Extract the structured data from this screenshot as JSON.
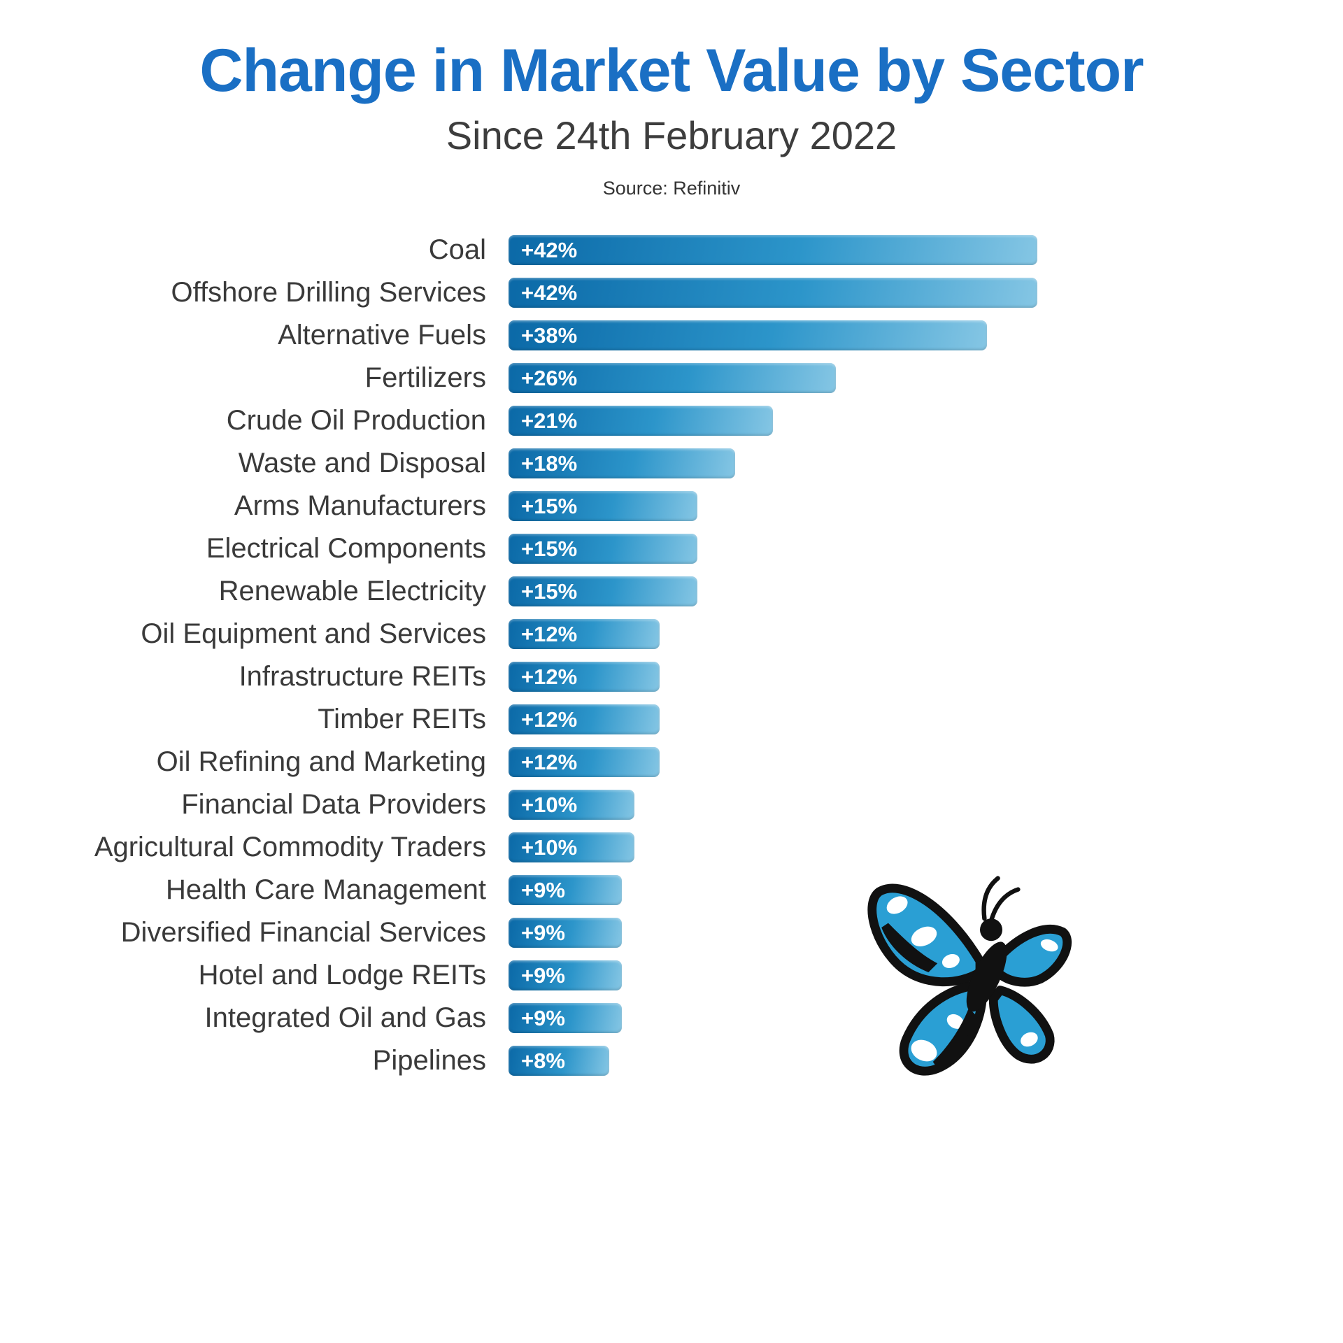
{
  "header": {
    "title": "Change in Market Value by Sector",
    "subtitle": "Since 24th February 2022",
    "source": "Source: Refinitiv"
  },
  "chart_data": {
    "type": "bar",
    "orientation": "horizontal",
    "title": "Change in Market Value by Sector",
    "subtitle": "Since 24th February 2022",
    "source": "Source: Refinitiv",
    "xlabel": "",
    "ylabel": "",
    "xlim": [
      0,
      45
    ],
    "grid": false,
    "legend": false,
    "categories": [
      "Coal",
      "Offshore Drilling Services",
      "Alternative Fuels",
      "Fertilizers",
      "Crude Oil Production",
      "Waste and Disposal",
      "Arms Manufacturers",
      "Electrical Components",
      "Renewable Electricity",
      "Oil Equipment and Services",
      "Infrastructure REITs",
      "Timber REITs",
      "Oil Refining and Marketing",
      "Financial Data Providers",
      "Agricultural Commodity Traders",
      "Health Care Management",
      "Diversified Financial Services",
      "Hotel and Lodge REITs",
      "Integrated Oil and Gas",
      "Pipelines"
    ],
    "values": [
      42,
      42,
      38,
      26,
      21,
      18,
      15,
      15,
      15,
      12,
      12,
      12,
      12,
      10,
      10,
      9,
      9,
      9,
      9,
      8
    ],
    "value_labels": [
      "+42%",
      "+42%",
      "+38%",
      "+26%",
      "+21%",
      "+18%",
      "+15%",
      "+15%",
      "+15%",
      "+12%",
      "+12%",
      "+12%",
      "+12%",
      "+10%",
      "+10%",
      "+9%",
      "+9%",
      "+9%",
      "+9%",
      "+8%"
    ],
    "colors": {
      "title": "#1a6fc4",
      "bar_gradient_start": "#0b69a7",
      "bar_gradient_end": "#85c6e4",
      "bar_label_text": "#ffffff",
      "category_text": "#3a3a3a"
    }
  },
  "logo": {
    "name": "butterfly-logo",
    "colors": {
      "wing": "#2a9fd4",
      "outline": "#111111",
      "spots": "#ffffff"
    }
  }
}
